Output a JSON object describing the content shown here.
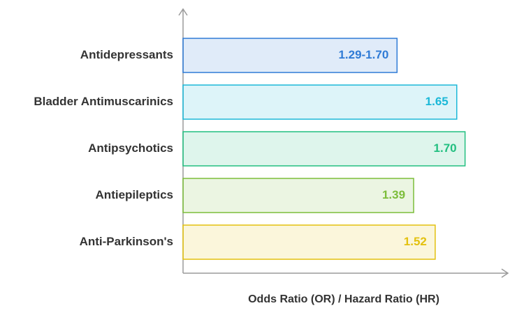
{
  "chart_data": {
    "type": "hbar",
    "categories": [
      "Antidepressants",
      "Bladder Antimuscarinics",
      "Antipsychotics",
      "Antiepileptics",
      "Anti-Parkinson's"
    ],
    "values": [
      1.29,
      1.65,
      1.7,
      1.39,
      1.52
    ],
    "value_labels": [
      "1.29-1.70",
      "1.65",
      "1.70",
      "1.39",
      "1.52"
    ],
    "colors": [
      "#2f7bd6",
      "#1bb8d8",
      "#22bf80",
      "#7cbd3a",
      "#e3c10f"
    ],
    "xlim": [
      0,
      1.95
    ],
    "xlabel": "Odds Ratio (OR) / Hazard Ratio (HR)"
  }
}
